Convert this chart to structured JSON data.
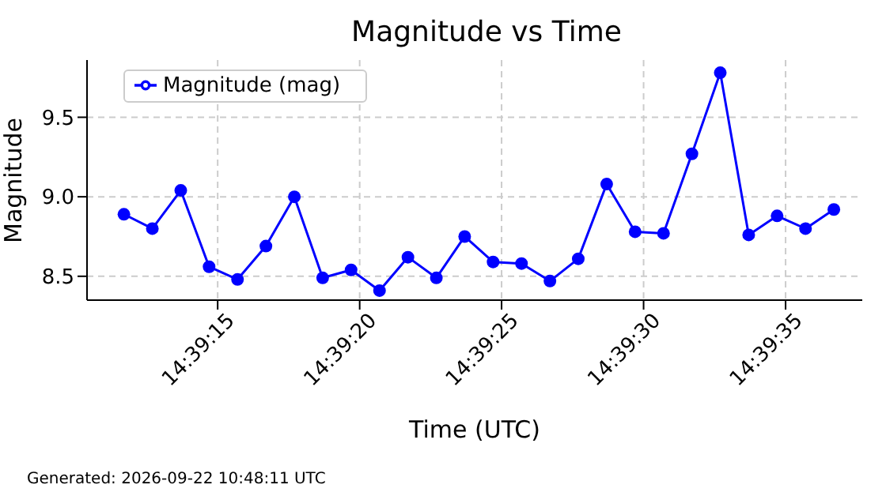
{
  "chart_data": {
    "type": "line",
    "title": "Magnitude vs Time",
    "xlabel": "Time (UTC)",
    "ylabel": "Magnitude",
    "x": [
      14.65325,
      14.653528,
      14.653806,
      14.654083,
      14.654361,
      14.654639,
      14.654917,
      14.655194,
      14.655472,
      14.65575,
      14.656028,
      14.656306,
      14.656583,
      14.656861,
      14.657139,
      14.657417,
      14.657694,
      14.657972,
      14.65825,
      14.658528,
      14.658806,
      14.659083,
      14.659361,
      14.659639,
      14.659917,
      14.660194
    ],
    "series": [
      {
        "name": "Magnitude (mag)",
        "color": "#0000ff",
        "values": [
          8.89,
          8.8,
          9.04,
          8.56,
          8.48,
          8.69,
          9.0,
          8.49,
          8.54,
          8.41,
          8.62,
          8.49,
          8.75,
          8.59,
          8.58,
          8.47,
          8.61,
          9.08,
          8.78,
          8.77,
          9.27,
          9.78,
          8.76,
          8.88,
          8.8,
          8.92
        ]
      }
    ],
    "xlim": [
      14.652889,
      14.660472
    ],
    "xticks": [
      {
        "value": 14.654167,
        "label": "14:39:15"
      },
      {
        "value": 14.655556,
        "label": "14:39:20"
      },
      {
        "value": 14.656944,
        "label": "14:39:25"
      },
      {
        "value": 14.658333,
        "label": "14:39:30"
      },
      {
        "value": 14.659722,
        "label": "14:39:35"
      }
    ],
    "ylim": [
      8.35,
      9.86
    ],
    "yticks": [
      {
        "value": 8.5,
        "label": "8.5"
      },
      {
        "value": 9.0,
        "label": "9.0"
      },
      {
        "value": 9.5,
        "label": "9.5"
      }
    ],
    "grid": true,
    "legend": "top left",
    "marker": "circle",
    "line_style": "solid",
    "annotations": [
      "Generated: 2026-09-22 10:48:11 UTC"
    ]
  }
}
